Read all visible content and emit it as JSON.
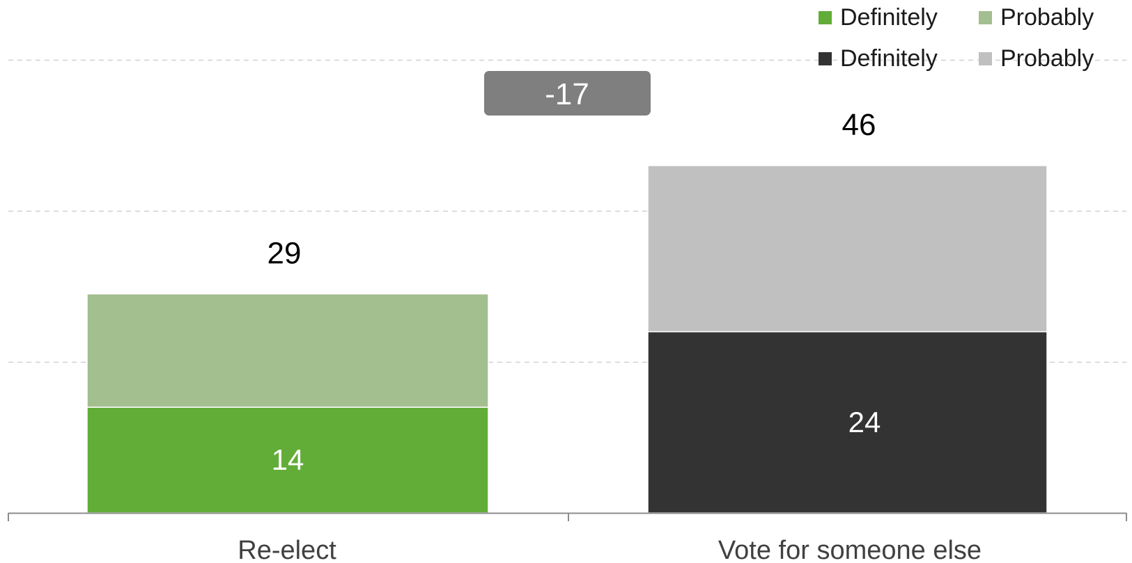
{
  "chart_data": {
    "type": "bar",
    "stacked": true,
    "categories": [
      "Re-elect",
      "Vote for someone else"
    ],
    "stacks": [
      {
        "category": "Re-elect",
        "total": 29,
        "segments": [
          {
            "label": "Definitely",
            "value": 14,
            "color": "#62ad38",
            "show_label": true
          },
          {
            "label": "Probably",
            "value": 15,
            "color": "#a3be8f",
            "show_label": false
          }
        ]
      },
      {
        "category": "Vote for someone else",
        "total": 46,
        "segments": [
          {
            "label": "Definitely",
            "value": 24,
            "color": "#333333",
            "show_label": true
          },
          {
            "label": "Probably",
            "value": 22,
            "color": "#c0c0c0",
            "show_label": false
          }
        ]
      }
    ],
    "difference_label": "-17",
    "difference_color": "#7f7f7f",
    "ylim": [
      0,
      60
    ],
    "grid_values": [
      20,
      40,
      60
    ],
    "grid": true,
    "grid_color": "#d0d0d0",
    "axis_color": "#8c8c8c",
    "legend_position": "top-right",
    "legend": [
      {
        "label": "Definitely",
        "color": "#62ad38"
      },
      {
        "label": "Probably",
        "color": "#a3be8f"
      },
      {
        "label": "Definitely",
        "color": "#333333"
      },
      {
        "label": "Probably",
        "color": "#c0c0c0"
      }
    ],
    "title": "",
    "xlabel": "",
    "ylabel": ""
  }
}
